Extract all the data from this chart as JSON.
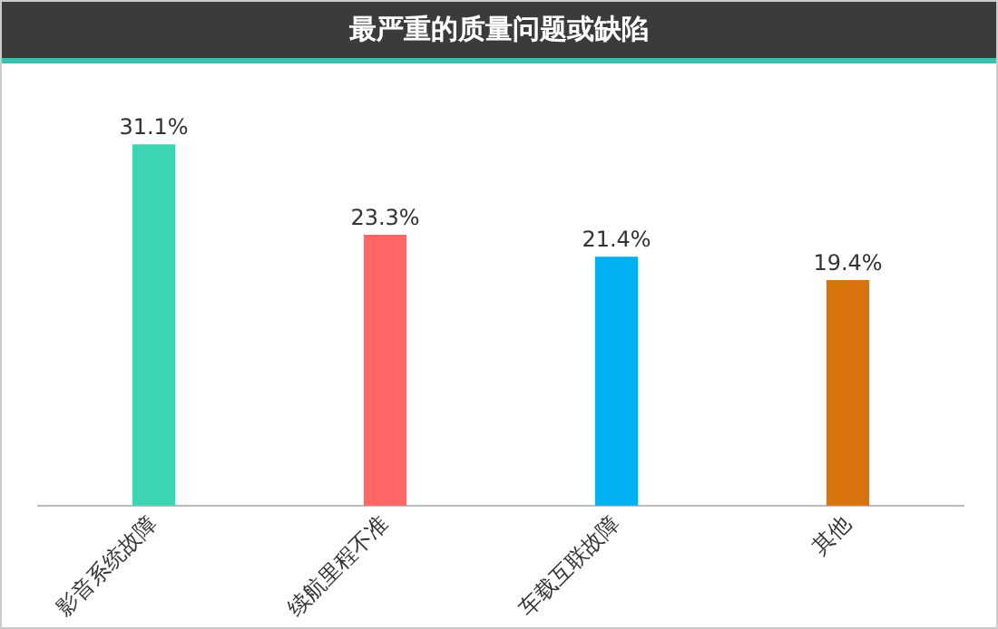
{
  "chart_data": {
    "type": "bar",
    "title": "最严重的质量问题或缺陷",
    "categories": [
      "影音系统故障",
      "续航里程不准",
      "车载互联故障",
      "其他"
    ],
    "values": [
      31.1,
      23.3,
      21.4,
      19.4
    ],
    "colors": [
      "#3dd6b5",
      "#ff6666",
      "#00b0f0",
      "#d9730d"
    ],
    "value_labels": [
      "31.1%",
      "23.3%",
      "21.4%",
      "19.4%"
    ],
    "grid": false,
    "legend": false
  }
}
